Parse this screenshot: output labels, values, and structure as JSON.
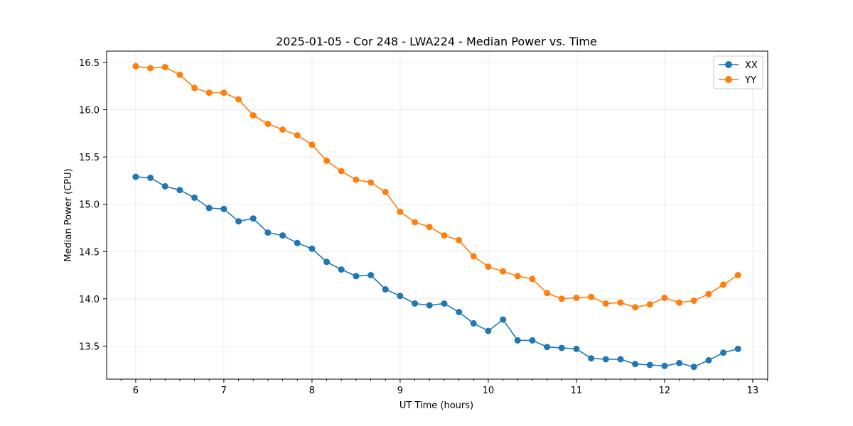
{
  "chart_data": {
    "type": "line",
    "title": "2025-01-05 - Cor 248 - LWA224 - Median Power vs. Time",
    "xlabel": "UT Time (hours)",
    "ylabel": "Median Power (CPU)",
    "xlim": [
      5.67,
      13.17
    ],
    "ylim": [
      13.15,
      16.62
    ],
    "xticks": [
      6,
      7,
      8,
      9,
      10,
      11,
      12,
      13
    ],
    "xtick_labels": [
      "6",
      "7",
      "8",
      "9",
      "10",
      "11",
      "12",
      "13"
    ],
    "yticks": [
      13.5,
      14.0,
      14.5,
      15.0,
      15.5,
      16.0,
      16.5
    ],
    "ytick_labels": [
      "13.5",
      "14.0",
      "14.5",
      "15.0",
      "15.5",
      "16.0",
      "16.5"
    ],
    "grid": true,
    "legend_position": "top-right",
    "x": [
      6.0,
      6.1667,
      6.3333,
      6.5,
      6.6667,
      6.8333,
      7.0,
      7.1667,
      7.3333,
      7.5,
      7.6667,
      7.8333,
      8.0,
      8.1667,
      8.3333,
      8.5,
      8.6667,
      8.8333,
      9.0,
      9.1667,
      9.3333,
      9.5,
      9.6667,
      9.8333,
      10.0,
      10.1667,
      10.3333,
      10.5,
      10.6667,
      10.8333,
      11.0,
      11.1667,
      11.3333,
      11.5,
      11.6667,
      11.8333,
      12.0,
      12.1667,
      12.3333,
      12.5,
      12.6667,
      12.8333
    ],
    "series": [
      {
        "name": "XX",
        "color": "#1f77b4",
        "values": [
          15.29,
          15.28,
          15.19,
          15.15,
          15.07,
          14.96,
          14.95,
          14.82,
          14.85,
          14.7,
          14.67,
          14.59,
          14.53,
          14.39,
          14.31,
          14.24,
          14.25,
          14.1,
          14.03,
          13.95,
          13.93,
          13.95,
          13.86,
          13.74,
          13.66,
          13.78,
          13.56,
          13.56,
          13.49,
          13.48,
          13.47,
          13.37,
          13.36,
          13.36,
          13.31,
          13.3,
          13.29,
          13.32,
          13.28,
          13.35,
          13.43,
          13.47
        ]
      },
      {
        "name": "YY",
        "color": "#ff7f0e",
        "values": [
          16.46,
          16.44,
          16.45,
          16.37,
          16.23,
          16.18,
          16.18,
          16.11,
          15.94,
          15.85,
          15.79,
          15.73,
          15.63,
          15.46,
          15.35,
          15.26,
          15.23,
          15.13,
          14.92,
          14.81,
          14.76,
          14.67,
          14.62,
          14.45,
          14.34,
          14.29,
          14.24,
          14.21,
          14.06,
          14.0,
          14.01,
          14.02,
          13.95,
          13.96,
          13.91,
          13.94,
          14.01,
          13.96,
          13.98,
          14.05,
          14.15,
          14.25
        ]
      }
    ]
  }
}
